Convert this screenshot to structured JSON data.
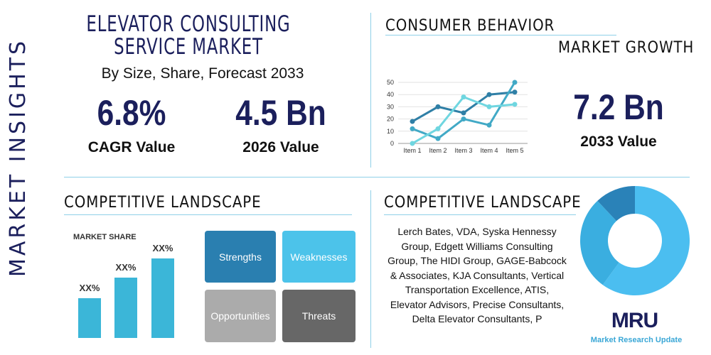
{
  "side_label": "MARKET INSIGHTS",
  "title": "ELEVATOR CONSULTING SERVICE MARKET",
  "subtitle": "By Size, Share, Forecast 2033",
  "cagr": {
    "value": "6.8%",
    "label": "CAGR Value"
  },
  "value_2026": {
    "value": "4.5 Bn",
    "label": "2026 Value"
  },
  "consumer_behavior": "CONSUMER BEHAVIOR",
  "market_growth": "MARKET GROWTH",
  "value_2033": {
    "value": "7.2 Bn",
    "label": "2033 Value"
  },
  "competitive_left": "COMPETITIVE LANDSCAPE",
  "competitive_right": "COMPETITIVE LANDSCAPE",
  "market_share": {
    "title": "MARKET SHARE",
    "bars": [
      {
        "label": "XX%",
        "level": 0.45
      },
      {
        "label": "XX%",
        "level": 0.68
      },
      {
        "label": "XX%",
        "level": 0.9
      }
    ]
  },
  "swot": {
    "strengths": "Strengths",
    "weaknesses": "Weaknesses",
    "opportunities": "Opportunities",
    "threats": "Threats"
  },
  "companies": "Lerch Bates, VDA, Syska Hennessy Group, Edgett Williams Consulting Group, The HIDI Group, GAGE-Babcock & Associates, KJA Consultants, Vertical Transportation Excellence, ATIS, Elevator Advisors, Precise Consultants, Delta Elevator Consultants, P",
  "logo": {
    "mark": "MRU",
    "name": "Market Research Update"
  },
  "chart_data": {
    "type": "line",
    "categories": [
      "Item 1",
      "Item 2",
      "Item 3",
      "Item 4",
      "Item 5"
    ],
    "ylim": [
      0,
      50
    ],
    "yticks": [
      0,
      10,
      20,
      30,
      40,
      50
    ],
    "grid": true,
    "series": [
      {
        "values": [
          18,
          30,
          25,
          40,
          42
        ],
        "color": "#2f7fa6"
      },
      {
        "values": [
          12,
          4,
          20,
          15,
          50
        ],
        "color": "#41a9c6"
      },
      {
        "values": [
          0,
          12,
          38,
          30,
          32
        ],
        "color": "#6fd6e0"
      }
    ]
  },
  "donut_data": {
    "type": "pie",
    "values": [
      60,
      28,
      12
    ],
    "colors": [
      "#4bbef0",
      "#3aaee0",
      "#2a82b8"
    ]
  }
}
